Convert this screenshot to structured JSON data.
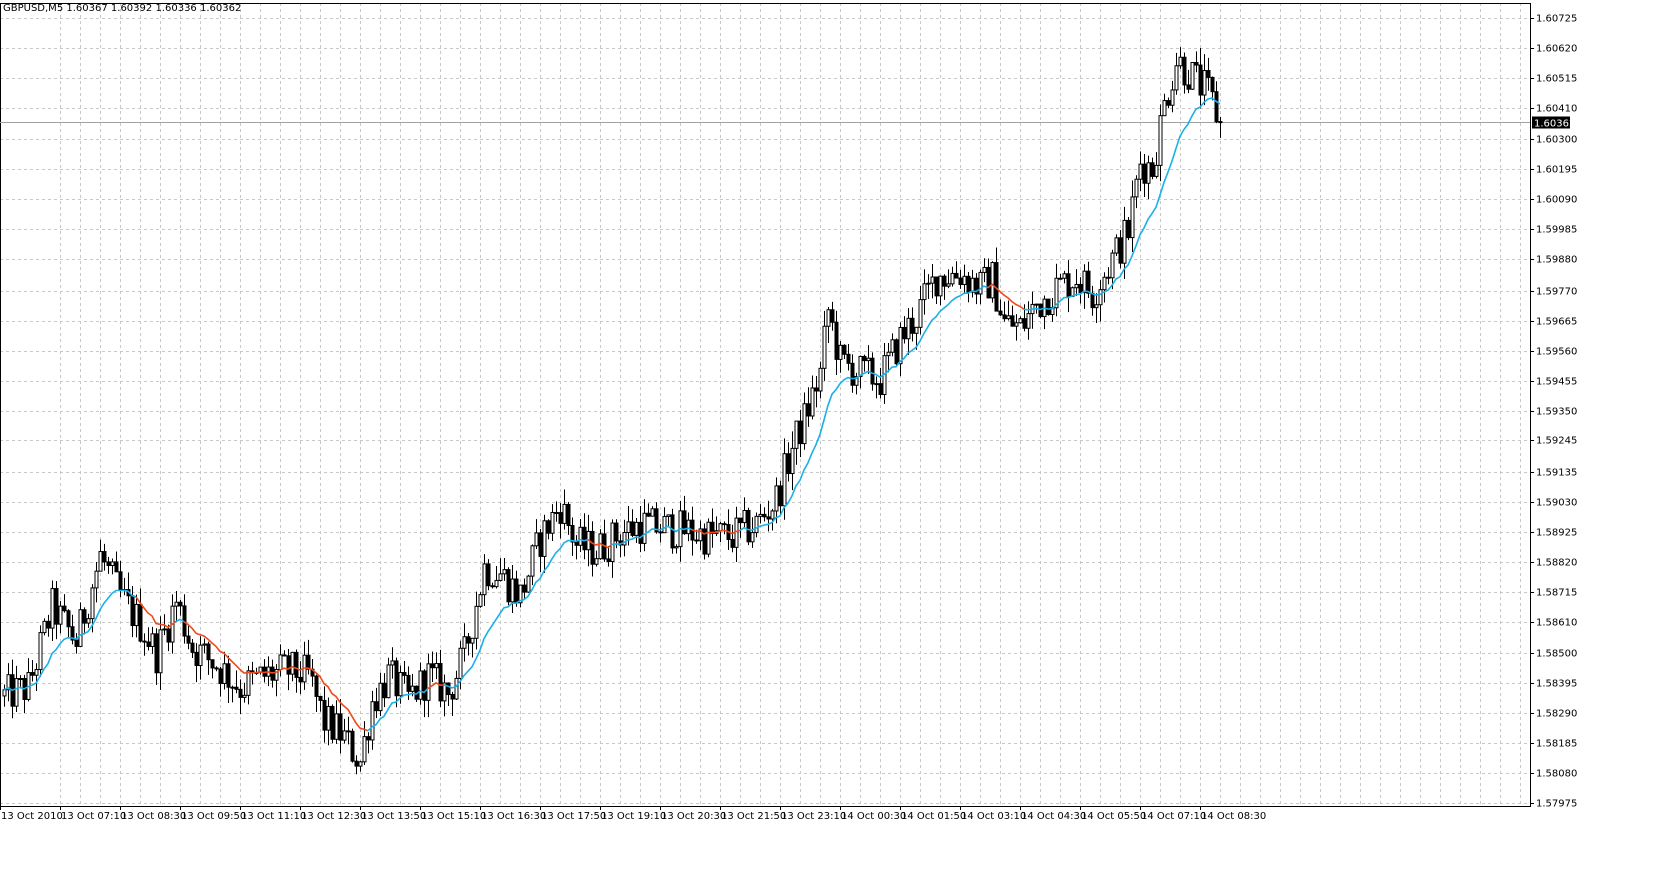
{
  "header": {
    "symbol": "GBPUSD,M5",
    "ohlc": "1.60367 1.60392 1.60336 1.60362"
  },
  "colors": {
    "background": "#ffffff",
    "grid": "#c8c8c8",
    "candle": "#000000",
    "ma_up": "#1ab0e8",
    "ma_down": "#f04a1c",
    "current_price_line": "#a0a0a0",
    "current_price_tag_bg": "#000000",
    "current_price_tag_fg": "#ffffff"
  },
  "chart_data": {
    "type": "candlestick",
    "symbol": "GBPUSD",
    "timeframe": "M5",
    "ylim": [
      1.57975,
      1.60725
    ],
    "y_ticks": [
      "1.60725",
      "1.60620",
      "1.60515",
      "1.60410",
      "1.60300",
      "1.60195",
      "1.60090",
      "1.59985",
      "1.59880",
      "1.59770",
      "1.59665",
      "1.59560",
      "1.59455",
      "1.59350",
      "1.59245",
      "1.59135",
      "1.59030",
      "1.58925",
      "1.58820",
      "1.58715",
      "1.58610",
      "1.58500",
      "1.58395",
      "1.58290",
      "1.58185",
      "1.58080",
      "1.57975"
    ],
    "x_ticks": [
      "13 Oct 2010",
      "13 Oct 07:10",
      "13 Oct 08:30",
      "13 Oct 09:50",
      "13 Oct 11:10",
      "13 Oct 12:30",
      "13 Oct 13:50",
      "13 Oct 15:10",
      "13 Oct 16:30",
      "13 Oct 17:50",
      "13 Oct 19:10",
      "13 Oct 20:30",
      "13 Oct 21:50",
      "13 Oct 23:10",
      "14 Oct 00:30",
      "14 Oct 01:50",
      "14 Oct 03:10",
      "14 Oct 04:30",
      "14 Oct 05:50",
      "14 Oct 07:10",
      "14 Oct 08:30"
    ],
    "grid": true,
    "current_price": "1.60362",
    "price_path": [
      {
        "bar": 0,
        "price": 1.5835
      },
      {
        "bar": 6,
        "price": 1.5838
      },
      {
        "bar": 12,
        "price": 1.5866
      },
      {
        "bar": 18,
        "price": 1.5854
      },
      {
        "bar": 24,
        "price": 1.5884
      },
      {
        "bar": 29,
        "price": 1.587
      },
      {
        "bar": 34,
        "price": 1.586
      },
      {
        "bar": 38,
        "price": 1.585
      },
      {
        "bar": 43,
        "price": 1.5868
      },
      {
        "bar": 47,
        "price": 1.5852
      },
      {
        "bar": 53,
        "price": 1.5846
      },
      {
        "bar": 59,
        "price": 1.5838
      },
      {
        "bar": 65,
        "price": 1.5842
      },
      {
        "bar": 71,
        "price": 1.5844
      },
      {
        "bar": 76,
        "price": 1.5842
      },
      {
        "bar": 80,
        "price": 1.5826
      },
      {
        "bar": 84,
        "price": 1.5822
      },
      {
        "bar": 89,
        "price": 1.5812
      },
      {
        "bar": 92,
        "price": 1.5833
      },
      {
        "bar": 96,
        "price": 1.5842
      },
      {
        "bar": 101,
        "price": 1.5834
      },
      {
        "bar": 106,
        "price": 1.5842
      },
      {
        "bar": 111,
        "price": 1.5836
      },
      {
        "bar": 115,
        "price": 1.5849
      },
      {
        "bar": 120,
        "price": 1.588
      },
      {
        "bar": 124,
        "price": 1.5878
      },
      {
        "bar": 129,
        "price": 1.587
      },
      {
        "bar": 134,
        "price": 1.589
      },
      {
        "bar": 139,
        "price": 1.5902
      },
      {
        "bar": 143,
        "price": 1.5888
      },
      {
        "bar": 148,
        "price": 1.5886
      },
      {
        "bar": 154,
        "price": 1.5892
      },
      {
        "bar": 159,
        "price": 1.5895
      },
      {
        "bar": 164,
        "price": 1.5894
      },
      {
        "bar": 170,
        "price": 1.5893
      },
      {
        "bar": 176,
        "price": 1.5891
      },
      {
        "bar": 182,
        "price": 1.5891
      },
      {
        "bar": 188,
        "price": 1.5895
      },
      {
        "bar": 193,
        "price": 1.5904
      },
      {
        "bar": 197,
        "price": 1.5922
      },
      {
        "bar": 200,
        "price": 1.5932
      },
      {
        "bar": 204,
        "price": 1.5948
      },
      {
        "bar": 206,
        "price": 1.597
      },
      {
        "bar": 209,
        "price": 1.5952
      },
      {
        "bar": 214,
        "price": 1.5948
      },
      {
        "bar": 219,
        "price": 1.5946
      },
      {
        "bar": 224,
        "price": 1.596
      },
      {
        "bar": 228,
        "price": 1.5968
      },
      {
        "bar": 233,
        "price": 1.5982
      },
      {
        "bar": 239,
        "price": 1.5983
      },
      {
        "bar": 244,
        "price": 1.5978
      },
      {
        "bar": 247,
        "price": 1.5981
      },
      {
        "bar": 250,
        "price": 1.5966
      },
      {
        "bar": 254,
        "price": 1.5964
      },
      {
        "bar": 258,
        "price": 1.5972
      },
      {
        "bar": 263,
        "price": 1.5978
      },
      {
        "bar": 268,
        "price": 1.5982
      },
      {
        "bar": 272,
        "price": 1.5976
      },
      {
        "bar": 277,
        "price": 1.5988
      },
      {
        "bar": 281,
        "price": 1.5998
      },
      {
        "bar": 284,
        "price": 1.6022
      },
      {
        "bar": 287,
        "price": 1.602
      },
      {
        "bar": 290,
        "price": 1.6042
      },
      {
        "bar": 293,
        "price": 1.6058
      },
      {
        "bar": 297,
        "price": 1.6052
      },
      {
        "bar": 301,
        "price": 1.6046
      },
      {
        "bar": 304,
        "price": 1.6036
      }
    ],
    "ma_direction_segments": [
      {
        "from_bar": 0,
        "to_bar": 33,
        "direction": "up"
      },
      {
        "from_bar": 33,
        "to_bar": 43,
        "direction": "down"
      },
      {
        "from_bar": 43,
        "to_bar": 45,
        "direction": "up"
      },
      {
        "from_bar": 45,
        "to_bar": 91,
        "direction": "down"
      },
      {
        "from_bar": 91,
        "to_bar": 106,
        "direction": "up"
      },
      {
        "from_bar": 106,
        "to_bar": 110,
        "direction": "down"
      },
      {
        "from_bar": 110,
        "to_bar": 146,
        "direction": "up"
      },
      {
        "from_bar": 146,
        "to_bar": 152,
        "direction": "down"
      },
      {
        "from_bar": 152,
        "to_bar": 172,
        "direction": "up"
      },
      {
        "from_bar": 172,
        "to_bar": 184,
        "direction": "down"
      },
      {
        "from_bar": 184,
        "to_bar": 246,
        "direction": "up"
      },
      {
        "from_bar": 246,
        "to_bar": 255,
        "direction": "down"
      },
      {
        "from_bar": 255,
        "to_bar": 305,
        "direction": "up"
      }
    ]
  }
}
